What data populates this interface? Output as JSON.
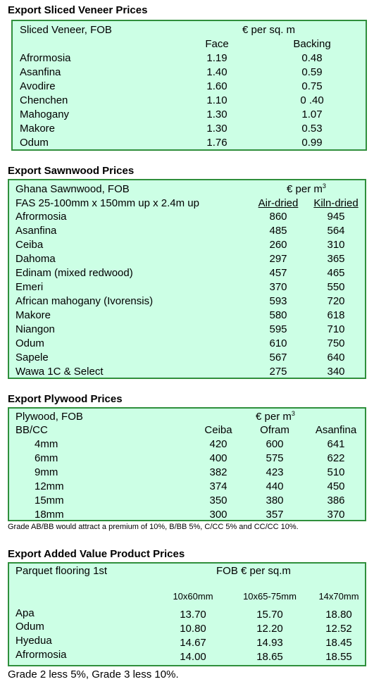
{
  "veneer": {
    "heading": "Export Sliced Veneer Prices",
    "subhead": "Sliced Veneer, FOB",
    "unit": "€ per sq. m",
    "col_face": "Face",
    "col_backing": "Backing",
    "rows": [
      {
        "name": "Afrormosia",
        "face": "1.19",
        "backing": "0.48"
      },
      {
        "name": "Asanfina",
        "face": "1.40",
        "backing": "0.59"
      },
      {
        "name": "Avodire",
        "face": "1.60",
        "backing": "0.75"
      },
      {
        "name": "Chenchen",
        "face": "1.10",
        "backing": "0 .40"
      },
      {
        "name": "Mahogany",
        "face": "1.30",
        "backing": "1.07"
      },
      {
        "name": "Makore",
        "face": "1.30",
        "backing": "0.53"
      },
      {
        "name": "Odum",
        "face": "1.76",
        "backing": "0.99"
      }
    ]
  },
  "sawn": {
    "heading": "Export Sawnwood Prices",
    "subhead": "Ghana Sawnwood, FOB",
    "unit": "€ per m",
    "unit_sup": "3",
    "spec": "FAS 25-100mm x 150mm up x 2.4m up",
    "col_air": "Air-dried",
    "col_kiln": "Kiln-dried",
    "rows": [
      {
        "name": "Afrormosia",
        "air": "860",
        "kiln": "945"
      },
      {
        "name": "Asanfina",
        "air": "485",
        "kiln": "564"
      },
      {
        "name": "Ceiba",
        "air": "260",
        "kiln": "310"
      },
      {
        "name": "Dahoma",
        "air": "297",
        "kiln": "365"
      },
      {
        "name": "Edinam (mixed redwood)",
        "air": "457",
        "kiln": "465"
      },
      {
        "name": "Emeri",
        "air": "370",
        "kiln": "550"
      },
      {
        "name": "African mahogany (Ivorensis)",
        "air": "593",
        "kiln": "720"
      },
      {
        "name": "Makore",
        "air": "580",
        "kiln": "618"
      },
      {
        "name": "Niangon",
        "air": "595",
        "kiln": "710"
      },
      {
        "name": "Odum",
        "air": "610",
        "kiln": "750"
      },
      {
        "name": "Sapele",
        "air": "567",
        "kiln": "640"
      },
      {
        "name": "Wawa 1C & Select",
        "air": "275",
        "kiln": "340"
      }
    ]
  },
  "plywood": {
    "heading": "Export Plywood Prices",
    "subhead": "Plywood, FOB",
    "unit": "€ per m",
    "unit_sup": "3",
    "grade": "BB/CC",
    "col_ceiba": "Ceiba",
    "col_ofram": "Ofram",
    "col_asanfina": "Asanfina",
    "rows": [
      {
        "size": "4mm",
        "ceiba": "420",
        "ofram": "600",
        "asanfina": "641"
      },
      {
        "size": "6mm",
        "ceiba": "400",
        "ofram": "575",
        "asanfina": "622"
      },
      {
        "size": "9mm",
        "ceiba": "382",
        "ofram": "423",
        "asanfina": "510"
      },
      {
        "size": "12mm",
        "ceiba": "374",
        "ofram": "440",
        "asanfina": "450"
      },
      {
        "size": "15mm",
        "ceiba": "350",
        "ofram": "380",
        "asanfina": "386"
      },
      {
        "size": "18mm",
        "ceiba": "300",
        "ofram": "357",
        "asanfina": "370"
      }
    ],
    "note": "Grade AB/BB would attract a premium of 10%, B/BB 5%, C/CC 5% and CC/CC 10%."
  },
  "added": {
    "heading": "Export Added Value Product Prices",
    "subhead": "Parquet flooring 1st",
    "unit": "FOB € per sq.m",
    "col1": "10x60mm",
    "col2": "10x65-75mm",
    "col3": "14x70mm",
    "rows": [
      {
        "name": "Apa",
        "v1": "13.70",
        "v2": "15.70",
        "v3": "18.80"
      },
      {
        "name": "Odum",
        "v1": "10.80",
        "v2": "12.20",
        "v3": "12.52"
      },
      {
        "name": "Hyedua",
        "v1": "14.67",
        "v2": "14.93",
        "v3": "18.45"
      },
      {
        "name": "Afrormosia",
        "v1": "14.00",
        "v2": "18.65",
        "v3": "18.55"
      }
    ],
    "note": "Grade 2 less 5%, Grade 3 less 10%."
  }
}
